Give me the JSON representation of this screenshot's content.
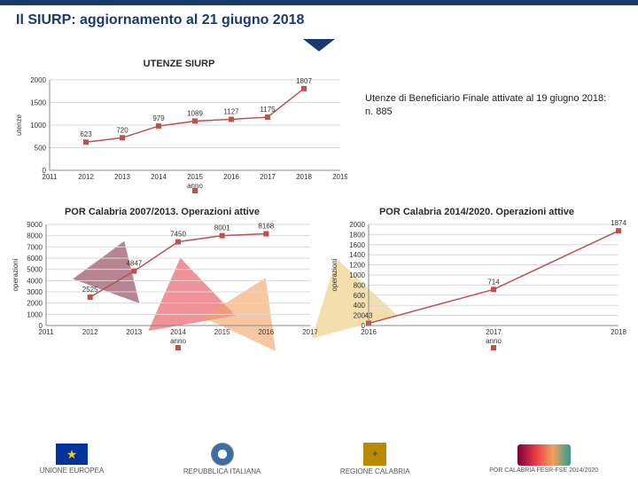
{
  "page_title": "Il SIURP: aggiornamento al 21 giugno 2018",
  "caption": "Utenze di Beneficiario Finale attivate al 19 giugno 2018: n. 885",
  "chart1": {
    "title": "UTENZE SIURP",
    "type": "line",
    "xlabel": "anno",
    "ylabel": "utenze",
    "x": [
      2011,
      2012,
      2013,
      2014,
      2015,
      2016,
      2017,
      2018,
      2019
    ],
    "y": [
      null,
      623,
      720,
      979,
      1089,
      1127,
      1175,
      1807,
      null
    ],
    "ylim": [
      0,
      2000
    ],
    "ytick_step": 500,
    "line_color": "#c0504d",
    "marker_style": "square",
    "marker_color": "#c0504d",
    "label_fontsize": 8,
    "title_fontsize": 11,
    "background_color": "#ffffff",
    "grid_color": "#d9d9d9"
  },
  "chart2": {
    "title": "POR Calabria 2007/2013. Operazioni attive",
    "type": "line",
    "xlabel": "anno",
    "ylabel": "operazioni",
    "x": [
      2011,
      2012,
      2013,
      2014,
      2015,
      2016,
      2017
    ],
    "y": [
      null,
      2525,
      4847,
      7450,
      8001,
      8168,
      null
    ],
    "ylim": [
      0,
      9000
    ],
    "ytick_step": 1000,
    "line_color": "#c0504d",
    "marker_style": "square",
    "marker_color": "#c0504d",
    "label_fontsize": 8,
    "title_fontsize": 11,
    "background_color": "#ffffff",
    "grid_color": "#d9d9d9"
  },
  "chart3": {
    "title": "POR Calabria 2014/2020. Operazioni attive",
    "type": "line",
    "xlabel": "anno",
    "ylabel": "operazioni",
    "x": [
      2016,
      2017,
      2018
    ],
    "y": [
      43,
      714,
      1874
    ],
    "ylim": [
      0,
      2000
    ],
    "ytick_step": 200,
    "line_color": "#c0504d",
    "marker_style": "square",
    "marker_color": "#c0504d",
    "label_fontsize": 8,
    "title_fontsize": 11,
    "background_color": "#ffffff",
    "grid_color": "#d9d9d9"
  },
  "footer": {
    "eu": "UNIONE EUROPEA",
    "it": "REPUBBLICA ITALIANA",
    "reg": "REGIONE CALABRIA"
  }
}
